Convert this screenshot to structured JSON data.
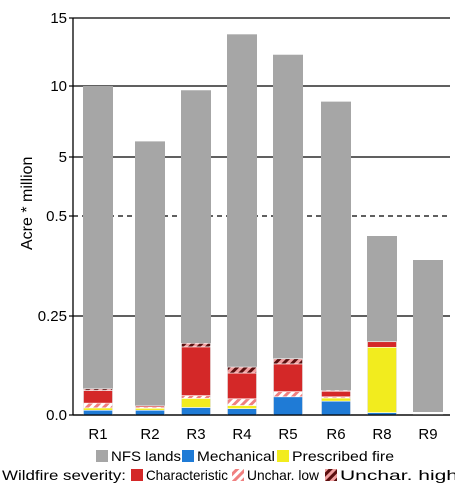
{
  "chart_data": {
    "type": "bar",
    "stacked": true,
    "y_scale": "broken/piecewise",
    "ylabel": "Acre * million",
    "yticks": [
      "0.0",
      "0.25",
      "0.5",
      "5",
      "10",
      "15"
    ],
    "categories": [
      "R1",
      "R2",
      "R3",
      "R4",
      "R5",
      "R6",
      "R8",
      "R9"
    ],
    "background_series": {
      "name": "NFS lands",
      "color": "#a6a6a6",
      "values": [
        10.0,
        6.1,
        9.7,
        13.8,
        12.3,
        8.9,
        0.45,
        0.39
      ]
    },
    "series": [
      {
        "name": "Mechanical",
        "color": "#1f7bd6",
        "values": [
          0.012,
          0.012,
          0.019,
          0.016,
          0.046,
          0.035,
          0.006,
          0.0
        ]
      },
      {
        "name": "Prescribed fire",
        "color": "#f2ec1e",
        "values": [
          0.006,
          0.005,
          0.023,
          0.008,
          0.0,
          0.008,
          0.165,
          0.0
        ]
      },
      {
        "name": "Unchar. low",
        "color": "#f08080",
        "pattern": "hatch-light",
        "values": [
          0.012,
          0.003,
          0.007,
          0.017,
          0.013,
          0.003,
          0.0,
          0.0
        ]
      },
      {
        "name": "Characteristic",
        "color": "#d42828",
        "values": [
          0.032,
          0.003,
          0.123,
          0.065,
          0.07,
          0.014,
          0.014,
          0.0
        ]
      },
      {
        "name": "Unchar. high",
        "color": "#8b1a1a",
        "pattern": "hatch-dark",
        "values": [
          0.004,
          0.0,
          0.009,
          0.015,
          0.013,
          0.002,
          0.0,
          0.0
        ]
      }
    ],
    "r9_marker": {
      "color": "#ffffff"
    },
    "legend": {
      "row1": [
        "NFS lands",
        "Mechanical",
        "Prescribed fire"
      ],
      "row2_prefix": "Wildfire severity:",
      "row2": [
        "Characteristic",
        "Unchar. low",
        "Unchar. high"
      ]
    },
    "grid": {
      "solid": [
        "0.0",
        "0.25",
        "5",
        "10",
        "15"
      ],
      "dashed": [
        "0.5"
      ]
    }
  }
}
